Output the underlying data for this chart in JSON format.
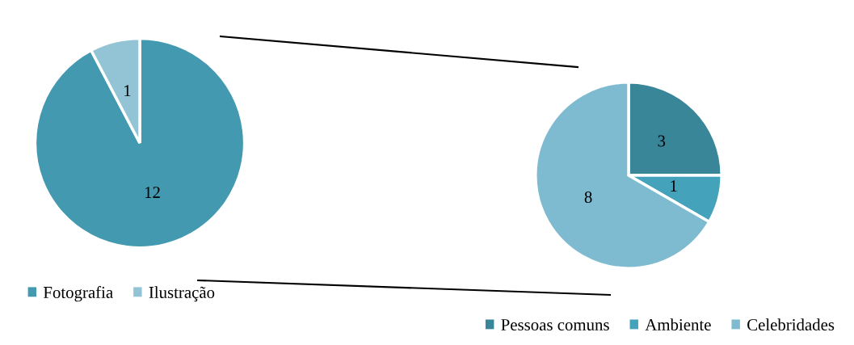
{
  "chart_data": [
    {
      "type": "pie",
      "categories": [
        "Fotografia",
        "Ilustração"
      ],
      "values": [
        12,
        1
      ],
      "colors": [
        "#4299b0",
        "#93c4d5"
      ],
      "data_labels": true,
      "legend": "bottom left"
    },
    {
      "type": "pie",
      "categories": [
        "Pessoas comuns",
        "Ambiente",
        "Celebridades"
      ],
      "values": [
        3,
        1,
        8
      ],
      "colors": [
        "#3a8699",
        "#45a2bb",
        "#7fbbd0"
      ],
      "data_labels": true,
      "legend": "bottom right"
    }
  ]
}
